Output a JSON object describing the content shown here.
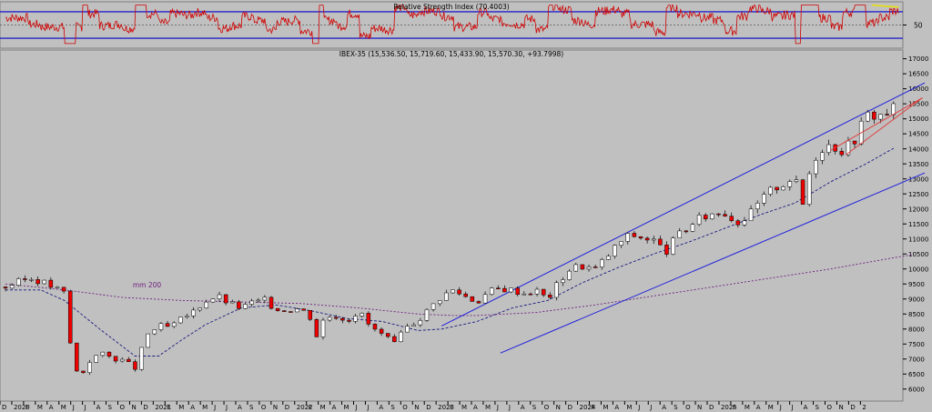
{
  "chart_data": [
    {
      "type": "line",
      "title": "Relative Strength Index (70.4003)",
      "y_ticks": [
        {
          "value": 50,
          "label": "50"
        }
      ],
      "ylim": [
        15,
        85
      ],
      "reference_lines": [
        70,
        30
      ],
      "midline": 50,
      "colors": {
        "rsi": "#d00000",
        "bands": "#0000cc",
        "highlight": "#e8e000"
      },
      "grid": false
    },
    {
      "type": "candlestick",
      "title": "IBEX-35 (15,536.50, 15,719.60, 15,433.90, 15,570.30, +93.7998)",
      "ylim": [
        5600,
        17200
      ],
      "y_ticks": [
        "6000",
        "6500",
        "7000",
        "7500",
        "8000",
        "8500",
        "9000",
        "9500",
        "10000",
        "10500",
        "11000",
        "11500",
        "12000",
        "12500",
        "13000",
        "13500",
        "14000",
        "14500",
        "15000",
        "15500",
        "16000",
        "16500",
        "17000"
      ],
      "x_ticks": [
        "D",
        "2020",
        "F",
        "M",
        "A",
        "M",
        "J",
        "J",
        "A",
        "S",
        "O",
        "N",
        "D",
        "2021",
        "F",
        "M",
        "A",
        "M",
        "J",
        "J",
        "A",
        "S",
        "O",
        "N",
        "D",
        "2022",
        "F",
        "M",
        "A",
        "M",
        "J",
        "J",
        "A",
        "S",
        "O",
        "N",
        "D",
        "2023",
        "F",
        "M",
        "A",
        "M",
        "J",
        "J",
        "A",
        "S",
        "O",
        "N",
        "D",
        "2024",
        "F",
        "M",
        "A",
        "M",
        "J",
        "J",
        "A",
        "S",
        "O",
        "N",
        "D",
        "2025",
        "F",
        "M",
        "A",
        "M",
        "J",
        "J",
        "A",
        "S",
        "O",
        "N",
        "D",
        "2"
      ],
      "annotation": "mm 200",
      "close_series": [
        [
          0,
          9400
        ],
        [
          1,
          9550
        ],
        [
          2,
          9700
        ],
        [
          3,
          9600
        ],
        [
          4,
          9400
        ],
        [
          5,
          9200
        ],
        [
          5.6,
          7200
        ],
        [
          6,
          6600
        ],
        [
          6.5,
          6500
        ],
        [
          7,
          6900
        ],
        [
          8,
          7200
        ],
        [
          9,
          7050
        ],
        [
          10,
          6950
        ],
        [
          11,
          6700
        ],
        [
          12,
          7800
        ],
        [
          13,
          8100
        ],
        [
          14,
          8050
        ],
        [
          15,
          8350
        ],
        [
          16,
          8600
        ],
        [
          17,
          8950
        ],
        [
          18,
          9100
        ],
        [
          19,
          8850
        ],
        [
          20,
          8700
        ],
        [
          21,
          8900
        ],
        [
          22,
          8950
        ],
        [
          23,
          8650
        ],
        [
          24,
          8650
        ],
        [
          25,
          8700
        ],
        [
          26,
          8350
        ],
        [
          26.6,
          7500
        ],
        [
          27,
          8400
        ],
        [
          28,
          8450
        ],
        [
          29,
          8300
        ],
        [
          30,
          8600
        ],
        [
          31,
          8050
        ],
        [
          32,
          7800
        ],
        [
          33,
          7500
        ],
        [
          34,
          8050
        ],
        [
          35,
          8300
        ],
        [
          36,
          8700
        ],
        [
          37,
          9100
        ],
        [
          38,
          9300
        ],
        [
          39,
          9100
        ],
        [
          40,
          8900
        ],
        [
          41,
          9250
        ],
        [
          42,
          9350
        ],
        [
          43,
          9300
        ],
        [
          44,
          9200
        ],
        [
          45,
          9300
        ],
        [
          46,
          9000
        ],
        [
          47,
          9600
        ],
        [
          48,
          10050
        ],
        [
          49,
          10100
        ],
        [
          50,
          10000
        ],
        [
          51,
          10400
        ],
        [
          52,
          10850
        ],
        [
          53,
          11150
        ],
        [
          54,
          11050
        ],
        [
          55,
          10950
        ],
        [
          56,
          10550
        ],
        [
          57,
          11100
        ],
        [
          58,
          11400
        ],
        [
          59,
          11700
        ],
        [
          60,
          11850
        ],
        [
          61,
          11900
        ],
        [
          62,
          11550
        ],
        [
          63,
          11750
        ],
        [
          64,
          12250
        ],
        [
          65,
          12650
        ],
        [
          66,
          12850
        ],
        [
          67,
          13100
        ],
        [
          67.5,
          11800
        ],
        [
          68,
          13000
        ],
        [
          69,
          14000
        ],
        [
          70,
          14150
        ],
        [
          71,
          13950
        ],
        [
          72,
          14300
        ],
        [
          73,
          15150
        ],
        [
          74,
          15100
        ],
        [
          75,
          15250
        ],
        [
          75.8,
          15570
        ]
      ],
      "channel_upper": [
        [
          37,
          8100
        ],
        [
          78,
          16200
        ]
      ],
      "channel_lower": [
        [
          42,
          7200
        ],
        [
          78,
          13200
        ]
      ],
      "wedge_upper": [
        [
          70,
          13950
        ],
        [
          77.8,
          15700
        ]
      ],
      "wedge_lower": [
        [
          71.3,
          13800
        ],
        [
          77.8,
          15700
        ]
      ],
      "ma200": [
        [
          0,
          9500
        ],
        [
          5,
          9300
        ],
        [
          10,
          9050
        ],
        [
          15,
          8950
        ],
        [
          20,
          8900
        ],
        [
          25,
          8850
        ],
        [
          30,
          8700
        ],
        [
          35,
          8500
        ],
        [
          38,
          8450
        ],
        [
          40,
          8450
        ],
        [
          45,
          8550
        ],
        [
          50,
          8800
        ],
        [
          55,
          9100
        ],
        [
          60,
          9400
        ],
        [
          65,
          9700
        ],
        [
          70,
          10000
        ],
        [
          75,
          10350
        ],
        [
          77,
          10480
        ]
      ],
      "ma50": [
        [
          0,
          9300
        ],
        [
          3,
          9300
        ],
        [
          5,
          8950
        ],
        [
          8,
          8000
        ],
        [
          11,
          7100
        ],
        [
          13,
          7100
        ],
        [
          15,
          7650
        ],
        [
          17,
          8150
        ],
        [
          20,
          8700
        ],
        [
          23,
          8800
        ],
        [
          26,
          8600
        ],
        [
          29,
          8350
        ],
        [
          32,
          8250
        ],
        [
          35,
          7950
        ],
        [
          37,
          8000
        ],
        [
          40,
          8250
        ],
        [
          43,
          8700
        ],
        [
          46,
          8950
        ],
        [
          49,
          9550
        ],
        [
          52,
          10050
        ],
        [
          55,
          10500
        ],
        [
          58,
          10900
        ],
        [
          61,
          11350
        ],
        [
          64,
          11800
        ],
        [
          67,
          12200
        ],
        [
          70,
          12900
        ],
        [
          73,
          13500
        ],
        [
          75.5,
          14050
        ]
      ],
      "colors": {
        "up": "#ffffff",
        "down": "#ee0000",
        "wick": "#000000",
        "channel": "#2020dd",
        "ma50": "#1a1a80",
        "ma200": "#702080",
        "wedge": "#e04040"
      },
      "grid": false
    }
  ]
}
